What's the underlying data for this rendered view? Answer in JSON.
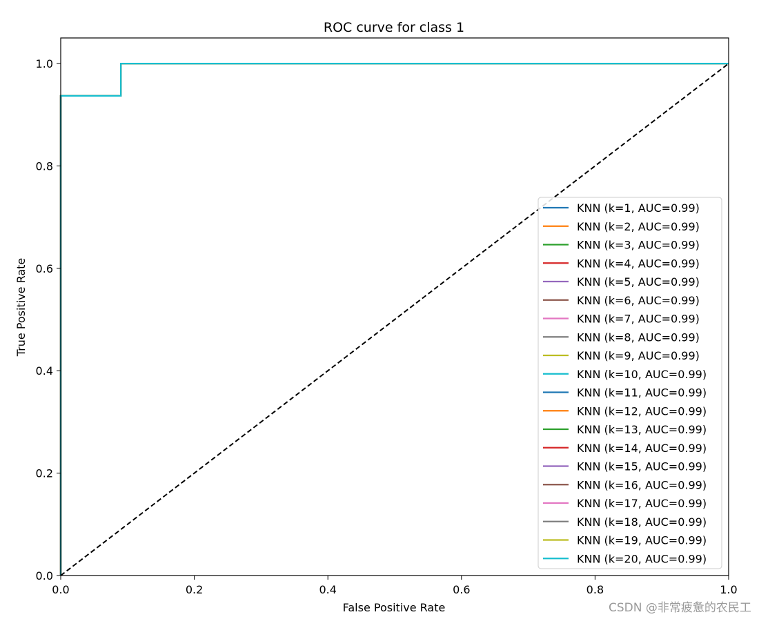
{
  "chart_data": {
    "type": "line",
    "title": "ROC curve for class 1",
    "xlabel": "False Positive Rate",
    "ylabel": "True Positive Rate",
    "xlim": [
      0.0,
      1.0
    ],
    "ylim": [
      0.0,
      1.05
    ],
    "xticks": [
      0.0,
      0.2,
      0.4,
      0.6,
      0.8,
      1.0
    ],
    "yticks": [
      0.0,
      0.2,
      0.4,
      0.6,
      0.8,
      1.0
    ],
    "xtick_labels": [
      "0.0",
      "0.2",
      "0.4",
      "0.6",
      "0.8",
      "1.0"
    ],
    "ytick_labels": [
      "0.0",
      "0.2",
      "0.4",
      "0.6",
      "0.8",
      "1.0"
    ],
    "grid": false,
    "legend_position": "center-right",
    "roc_points": {
      "x": [
        0.0,
        0.0,
        0.09,
        0.09,
        1.0
      ],
      "y": [
        0.0,
        0.937,
        0.937,
        1.0,
        1.0
      ]
    },
    "diagonal": {
      "x": [
        0.0,
        1.0
      ],
      "y": [
        0.0,
        1.0
      ],
      "color": "#000000",
      "style": "dashed"
    },
    "series": [
      {
        "name": "KNN (k=1, AUC=0.99)",
        "color": "#1f77b4"
      },
      {
        "name": "KNN (k=2, AUC=0.99)",
        "color": "#ff7f0e"
      },
      {
        "name": "KNN (k=3, AUC=0.99)",
        "color": "#2ca02c"
      },
      {
        "name": "KNN (k=4, AUC=0.99)",
        "color": "#d62728"
      },
      {
        "name": "KNN (k=5, AUC=0.99)",
        "color": "#9467bd"
      },
      {
        "name": "KNN (k=6, AUC=0.99)",
        "color": "#8c564b"
      },
      {
        "name": "KNN (k=7, AUC=0.99)",
        "color": "#e377c2"
      },
      {
        "name": "KNN (k=8, AUC=0.99)",
        "color": "#7f7f7f"
      },
      {
        "name": "KNN (k=9, AUC=0.99)",
        "color": "#bcbd22"
      },
      {
        "name": "KNN (k=10, AUC=0.99)",
        "color": "#17becf"
      },
      {
        "name": "KNN (k=11, AUC=0.99)",
        "color": "#1f77b4"
      },
      {
        "name": "KNN (k=12, AUC=0.99)",
        "color": "#ff7f0e"
      },
      {
        "name": "KNN (k=13, AUC=0.99)",
        "color": "#2ca02c"
      },
      {
        "name": "KNN (k=14, AUC=0.99)",
        "color": "#d62728"
      },
      {
        "name": "KNN (k=15, AUC=0.99)",
        "color": "#9467bd"
      },
      {
        "name": "KNN (k=16, AUC=0.99)",
        "color": "#8c564b"
      },
      {
        "name": "KNN (k=17, AUC=0.99)",
        "color": "#e377c2"
      },
      {
        "name": "KNN (k=18, AUC=0.99)",
        "color": "#7f7f7f"
      },
      {
        "name": "KNN (k=19, AUC=0.99)",
        "color": "#bcbd22"
      },
      {
        "name": "KNN (k=20, AUC=0.99)",
        "color": "#17becf"
      }
    ]
  },
  "watermark": "CSDN @非常疲惫的农民工"
}
